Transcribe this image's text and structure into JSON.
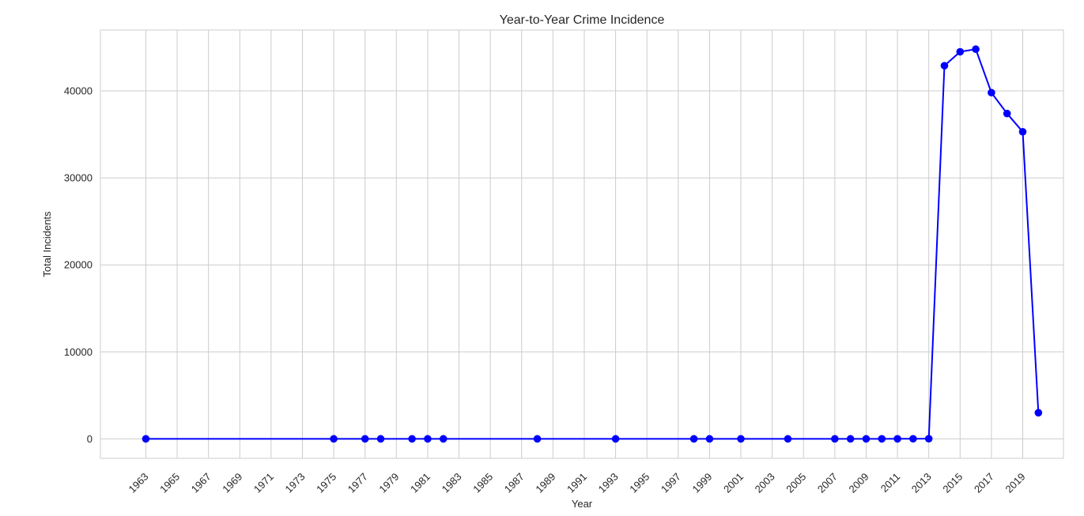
{
  "colors": {
    "line": "#0000ff",
    "grid": "#cccccc",
    "frame": "#cccccc",
    "background": "#ffffff"
  },
  "chart_data": {
    "type": "line",
    "title": "Year-to-Year Crime Incidence",
    "xlabel": "Year",
    "ylabel": "Total Incidents",
    "grid": true,
    "xlim": [
      1960.1,
      2021.6
    ],
    "ylim": [
      -2240,
      47000
    ],
    "xticks": [
      1963,
      1965,
      1967,
      1969,
      1971,
      1973,
      1975,
      1977,
      1979,
      1981,
      1983,
      1985,
      1987,
      1989,
      1991,
      1993,
      1995,
      1997,
      1999,
      2001,
      2003,
      2005,
      2007,
      2009,
      2011,
      2013,
      2015,
      2017,
      2019
    ],
    "yticks": [
      0,
      10000,
      20000,
      30000,
      40000
    ],
    "series": [
      {
        "marker": "circle",
        "x": [
          1963,
          1975,
          1977,
          1978,
          1980,
          1981,
          1982,
          1988,
          1993,
          1998,
          1999,
          2001,
          2004,
          2007,
          2008,
          2009,
          2010,
          2011,
          2012,
          2013,
          2014,
          2015,
          2016,
          2017,
          2018,
          2019,
          2020
        ],
        "y": [
          1,
          1,
          1,
          1,
          1,
          1,
          1,
          1,
          1,
          1,
          1,
          1,
          1,
          1,
          1,
          1,
          2,
          3,
          5,
          15,
          42900,
          44500,
          44800,
          39800,
          37400,
          35300,
          3000
        ]
      }
    ]
  }
}
